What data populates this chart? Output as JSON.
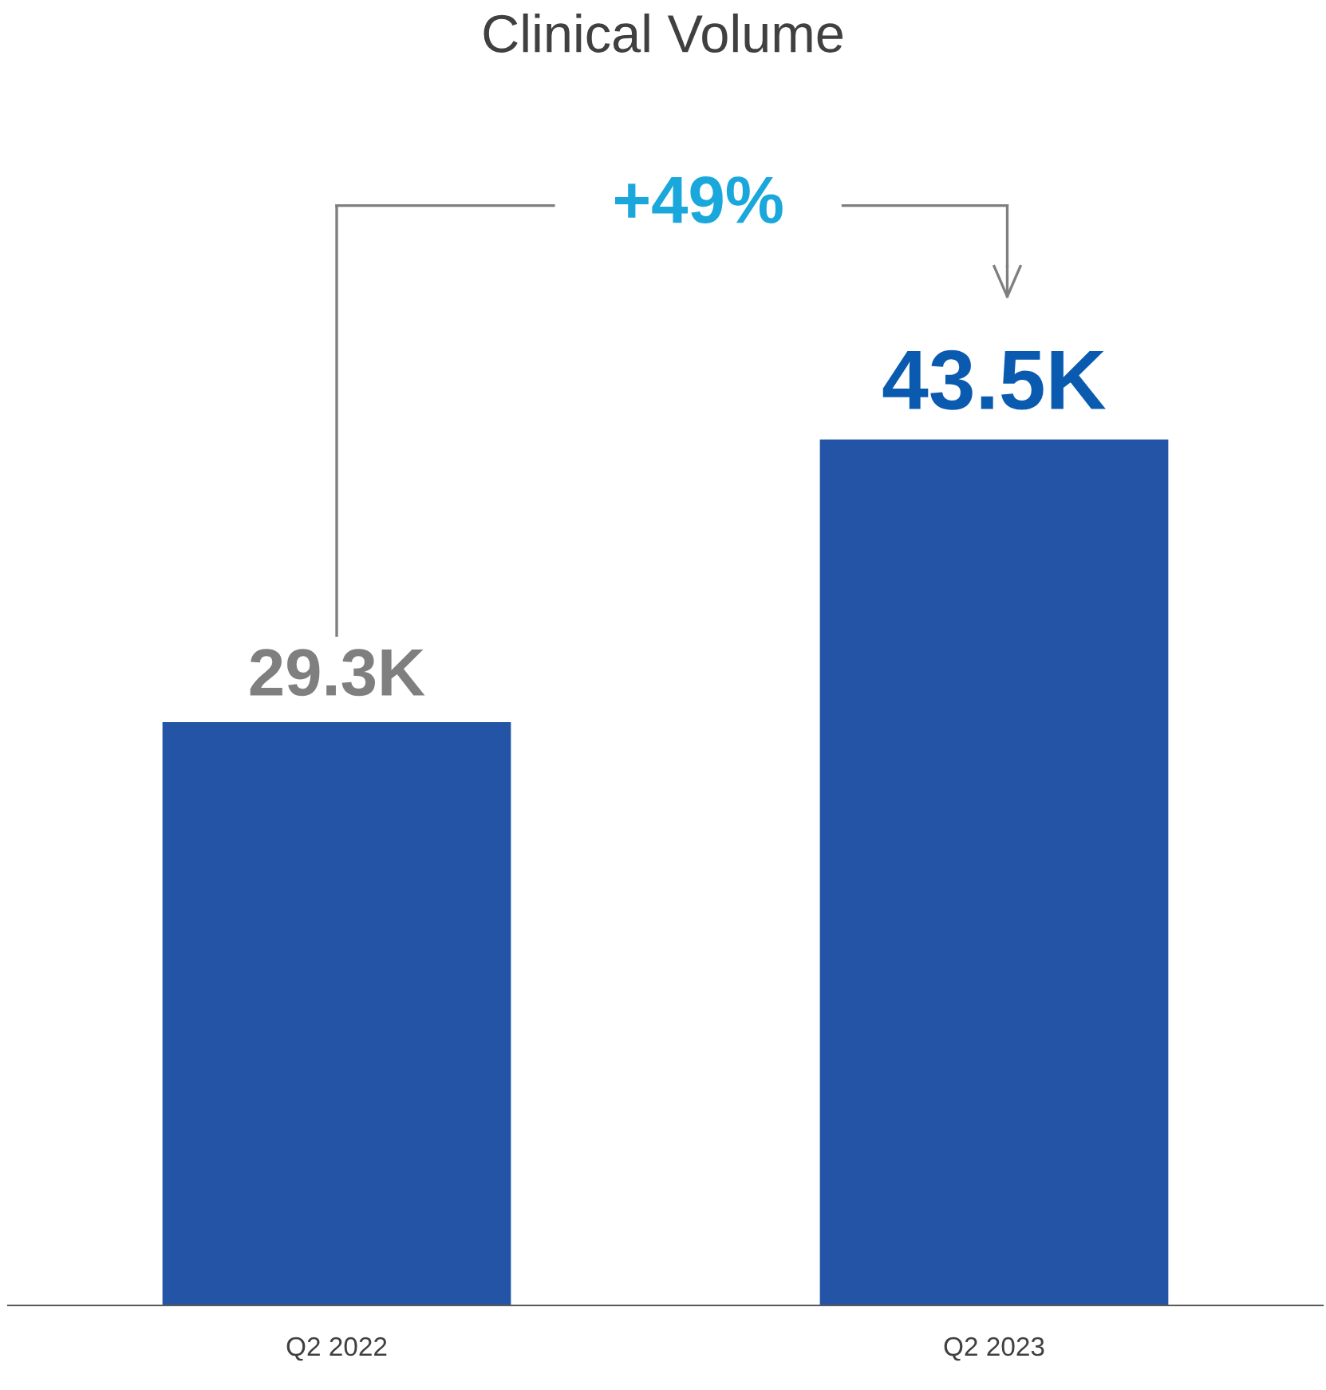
{
  "chart_data": {
    "type": "bar",
    "title": "Clinical Volume",
    "categories": [
      "Q2 2022",
      "Q2 2023"
    ],
    "values": [
      29.3,
      43.5
    ],
    "value_labels": [
      "29.3K",
      "43.5K"
    ],
    "colors": [
      "#2454a6",
      "#2454a6"
    ],
    "annotations": [
      "+49%"
    ],
    "grid": false,
    "legend": false,
    "tick_labels": "x"
  }
}
